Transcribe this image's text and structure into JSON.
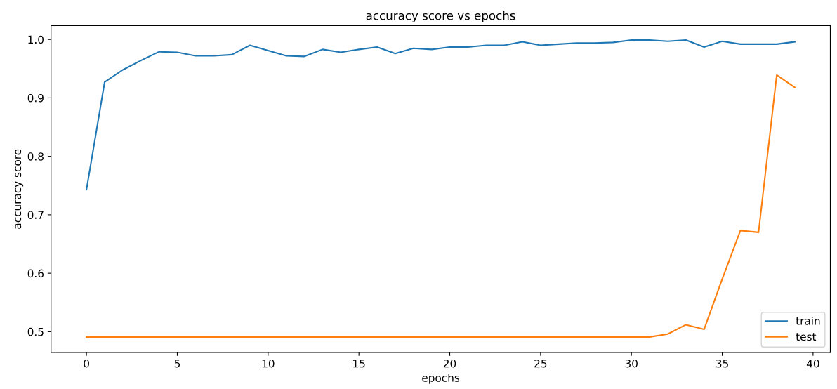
{
  "chart_data": {
    "type": "line",
    "title": "accuracy score vs epochs",
    "xlabel": "epochs",
    "ylabel": "accuracy score",
    "x": [
      0,
      1,
      2,
      3,
      4,
      5,
      6,
      7,
      8,
      9,
      10,
      11,
      12,
      13,
      14,
      15,
      16,
      17,
      18,
      19,
      20,
      21,
      22,
      23,
      24,
      25,
      26,
      27,
      28,
      29,
      30,
      31,
      32,
      33,
      34,
      35,
      36,
      37,
      38,
      39
    ],
    "series": [
      {
        "name": "train",
        "color": "#1f77b4",
        "values": [
          0.743,
          0.927,
          0.948,
          0.964,
          0.979,
          0.978,
          0.972,
          0.972,
          0.974,
          0.99,
          0.981,
          0.972,
          0.971,
          0.983,
          0.978,
          0.983,
          0.987,
          0.976,
          0.985,
          0.983,
          0.987,
          0.987,
          0.99,
          0.99,
          0.996,
          0.99,
          0.992,
          0.994,
          0.994,
          0.995,
          0.999,
          0.999,
          0.997,
          0.999,
          0.987,
          0.997,
          0.992,
          0.992,
          0.992,
          0.996
        ]
      },
      {
        "name": "test",
        "color": "#ff7f0e",
        "values": [
          0.491,
          0.491,
          0.491,
          0.491,
          0.491,
          0.491,
          0.491,
          0.491,
          0.491,
          0.491,
          0.491,
          0.491,
          0.491,
          0.491,
          0.491,
          0.491,
          0.491,
          0.491,
          0.491,
          0.491,
          0.491,
          0.491,
          0.491,
          0.491,
          0.491,
          0.491,
          0.491,
          0.491,
          0.491,
          0.491,
          0.491,
          0.491,
          0.496,
          0.512,
          0.504,
          0.59,
          0.673,
          0.67,
          0.939,
          0.918
        ]
      }
    ],
    "xlim": [
      -1.95,
      40.95
    ],
    "xticks": [
      0,
      5,
      10,
      15,
      20,
      25,
      30,
      35,
      40
    ],
    "ylim": [
      0.4645,
      1.0236
    ],
    "yticks": [
      {
        "value": 0.5,
        "label": "0.5"
      },
      {
        "value": 0.6,
        "label": "0.6"
      },
      {
        "value": 0.7,
        "label": "0.7"
      },
      {
        "value": 0.8,
        "label": "0.8"
      },
      {
        "value": 0.9,
        "label": "0.9"
      },
      {
        "value": 1.0,
        "label": "1.0"
      }
    ],
    "legend": "lower right",
    "grid": false,
    "marker": "none",
    "line_style": "solid"
  }
}
